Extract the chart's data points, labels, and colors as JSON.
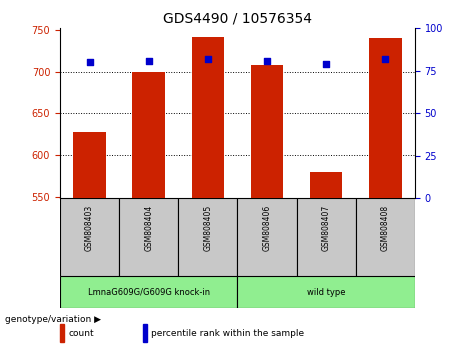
{
  "title": "GDS4490 / 10576354",
  "samples": [
    "GSM808403",
    "GSM808404",
    "GSM808405",
    "GSM808406",
    "GSM808407",
    "GSM808408"
  ],
  "count_values": [
    627,
    700,
    742,
    708,
    580,
    740
  ],
  "percentile_values": [
    80,
    81,
    82,
    81,
    79,
    82
  ],
  "y_min": 548,
  "y_max": 752,
  "y_ticks": [
    550,
    600,
    650,
    700,
    750
  ],
  "y2_ticks": [
    0,
    25,
    50,
    75,
    100
  ],
  "bar_color": "#cc2200",
  "dot_color": "#0000cc",
  "group_labels": [
    "LmnaG609G/G609G knock-in",
    "wild type"
  ],
  "group_ranges": [
    3,
    3
  ],
  "group_colors": [
    "#90EE90",
    "#90EE90"
  ],
  "sample_box_color": "#c8c8c8",
  "legend_count_label": "count",
  "legend_percentile_label": "percentile rank within the sample",
  "genotype_label": "genotype/variation",
  "tick_color_left": "#cc2200",
  "tick_color_right": "#0000cc",
  "tick_fontsize": 7,
  "title_fontsize": 10
}
